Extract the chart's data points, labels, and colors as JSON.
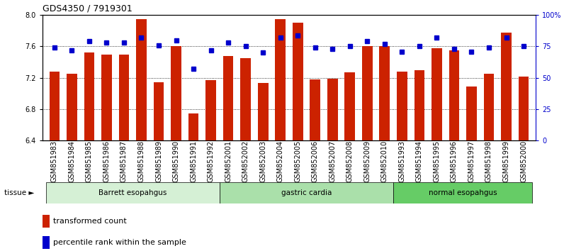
{
  "title": "GDS4350 / 7919301",
  "samples": [
    "GSM851983",
    "GSM851984",
    "GSM851985",
    "GSM851986",
    "GSM851987",
    "GSM851988",
    "GSM851989",
    "GSM851990",
    "GSM851991",
    "GSM851992",
    "GSM852001",
    "GSM852002",
    "GSM852003",
    "GSM852004",
    "GSM852005",
    "GSM852006",
    "GSM852007",
    "GSM852008",
    "GSM852009",
    "GSM852010",
    "GSM851993",
    "GSM851994",
    "GSM851995",
    "GSM851996",
    "GSM851997",
    "GSM851998",
    "GSM851999",
    "GSM852000"
  ],
  "bar_values": [
    7.28,
    7.25,
    7.52,
    7.5,
    7.5,
    7.95,
    7.14,
    7.6,
    6.75,
    7.17,
    7.48,
    7.45,
    7.13,
    7.95,
    7.9,
    7.18,
    7.19,
    7.27,
    7.6,
    7.6,
    7.28,
    7.3,
    7.58,
    7.55,
    7.09,
    7.25,
    7.78,
    7.22
  ],
  "percentile_values": [
    74,
    72,
    79,
    78,
    78,
    82,
    76,
    80,
    57,
    72,
    78,
    75,
    70,
    82,
    84,
    74,
    73,
    75,
    79,
    77,
    71,
    75,
    82,
    73,
    71,
    74,
    82,
    75
  ],
  "groups": [
    {
      "label": "Barrett esopahgus",
      "start": 0,
      "end": 9,
      "color": "#d5f0d5"
    },
    {
      "label": "gastric cardia",
      "start": 10,
      "end": 19,
      "color": "#aae0aa"
    },
    {
      "label": "normal esopahgus",
      "start": 20,
      "end": 27,
      "color": "#66cc66"
    }
  ],
  "ylim_left": [
    6.4,
    8.0
  ],
  "ylim_right": [
    0,
    100
  ],
  "yticks_left": [
    6.4,
    6.8,
    7.2,
    7.6,
    8.0
  ],
  "yticks_right": [
    0,
    25,
    50,
    75,
    100
  ],
  "bar_color": "#cc2200",
  "dot_color": "#0000cc",
  "background_color": "#ffffff",
  "title_fontsize": 9,
  "tick_fontsize": 7,
  "bar_bottom": 6.4
}
